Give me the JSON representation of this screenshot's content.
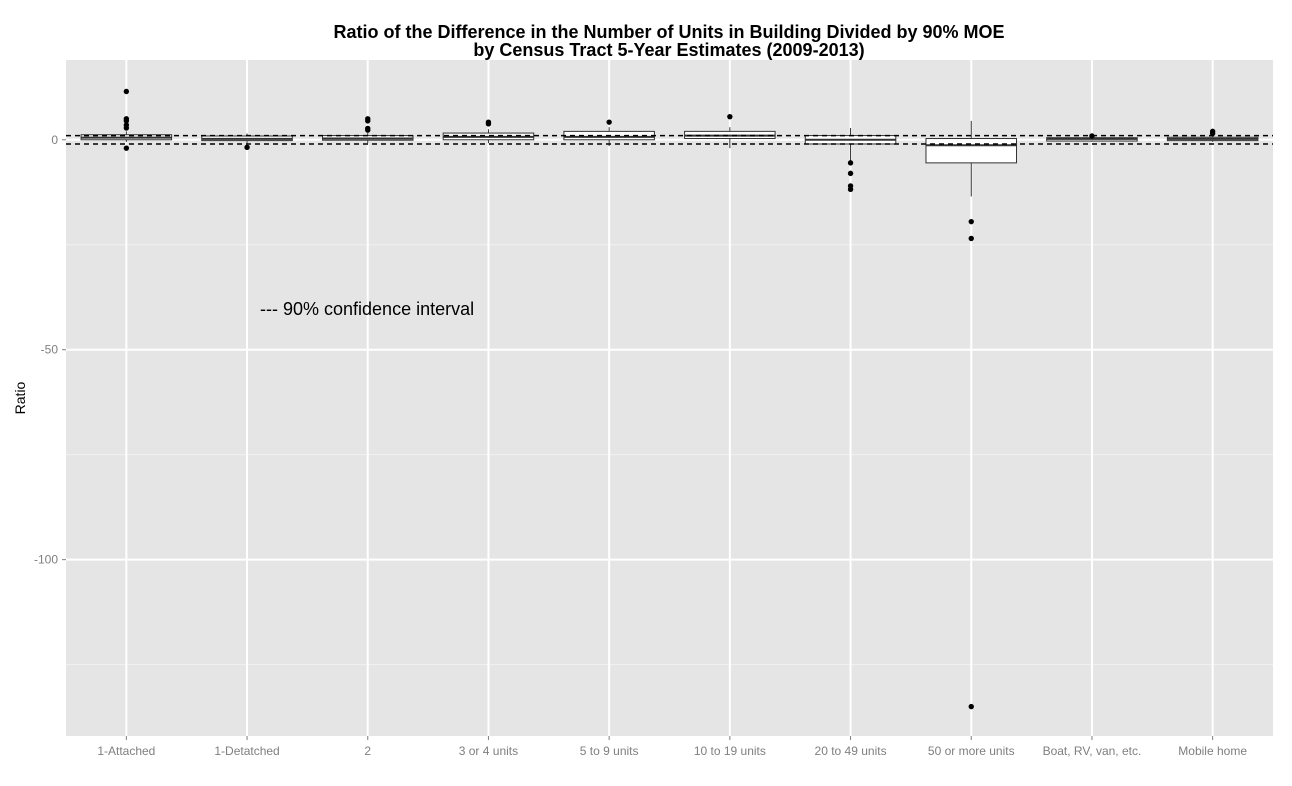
{
  "chart_data": {
    "type": "box",
    "title": "Ratio of the Difference in the Number of Units in Building Divided by 90% MOE",
    "subtitle": "by Census Tract 5-Year Estimates (2009-2013)",
    "ylabel": "Ratio",
    "xlabel": "",
    "ylim": [
      -142,
      19
    ],
    "yticks": [
      0,
      -50,
      -100
    ],
    "ytick_labels": [
      "0",
      "-50",
      "-100"
    ],
    "grid": true,
    "reference_lines": [
      1.0,
      -1.0
    ],
    "annotation": "--- 90% confidence interval",
    "categories": [
      "1-Attached",
      "1-Detatched",
      "2",
      "3 or 4 units",
      "5 to 9 units",
      "10 to 19 units",
      "20 to 49 units",
      "50 or more units",
      "Boat, RV, van, etc.",
      "Mobile home"
    ],
    "boxes": [
      {
        "q1": 0.0,
        "median": 0.5,
        "q3": 1.2,
        "whisker_low": -0.5,
        "whisker_high": 2.0,
        "outliers": [
          11.5,
          5.0,
          4.5,
          3.5,
          2.8,
          -2.0
        ]
      },
      {
        "q1": -0.2,
        "median": 0.2,
        "q3": 0.9,
        "whisker_low": -1.0,
        "whisker_high": 1.5,
        "outliers": [
          -1.8
        ]
      },
      {
        "q1": -0.1,
        "median": 0.3,
        "q3": 1.0,
        "whisker_low": -0.8,
        "whisker_high": 1.6,
        "outliers": [
          5.0,
          4.5,
          2.7,
          2.3
        ]
      },
      {
        "q1": 0.0,
        "median": 0.7,
        "q3": 1.6,
        "whisker_low": -0.8,
        "whisker_high": 2.5,
        "outliers": [
          4.2,
          3.8
        ]
      },
      {
        "q1": 0.0,
        "median": 0.7,
        "q3": 2.0,
        "whisker_low": -1.5,
        "whisker_high": 3.0,
        "outliers": [
          4.2
        ]
      },
      {
        "q1": 0.3,
        "median": 1.0,
        "q3": 2.0,
        "whisker_low": -2.0,
        "whisker_high": 3.0,
        "outliers": [
          5.5
        ]
      },
      {
        "q1": -1.0,
        "median": 0.0,
        "q3": 1.0,
        "whisker_low": -5.0,
        "whisker_high": 2.8,
        "outliers": [
          -5.5,
          -8.0,
          -11.0,
          -11.8
        ]
      },
      {
        "q1": -5.5,
        "median": -1.3,
        "q3": 0.3,
        "whisker_low": -13.5,
        "whisker_high": 4.5,
        "outliers": [
          -19.5,
          -23.5,
          -135.0
        ]
      },
      {
        "q1": -0.3,
        "median": 0.2,
        "q3": 0.5,
        "whisker_low": -0.5,
        "whisker_high": 0.9,
        "outliers": [
          0.9
        ]
      },
      {
        "q1": -0.2,
        "median": 0.2,
        "q3": 0.6,
        "whisker_low": -0.5,
        "whisker_high": 1.2,
        "outliers": [
          2.0,
          1.5
        ]
      }
    ]
  }
}
